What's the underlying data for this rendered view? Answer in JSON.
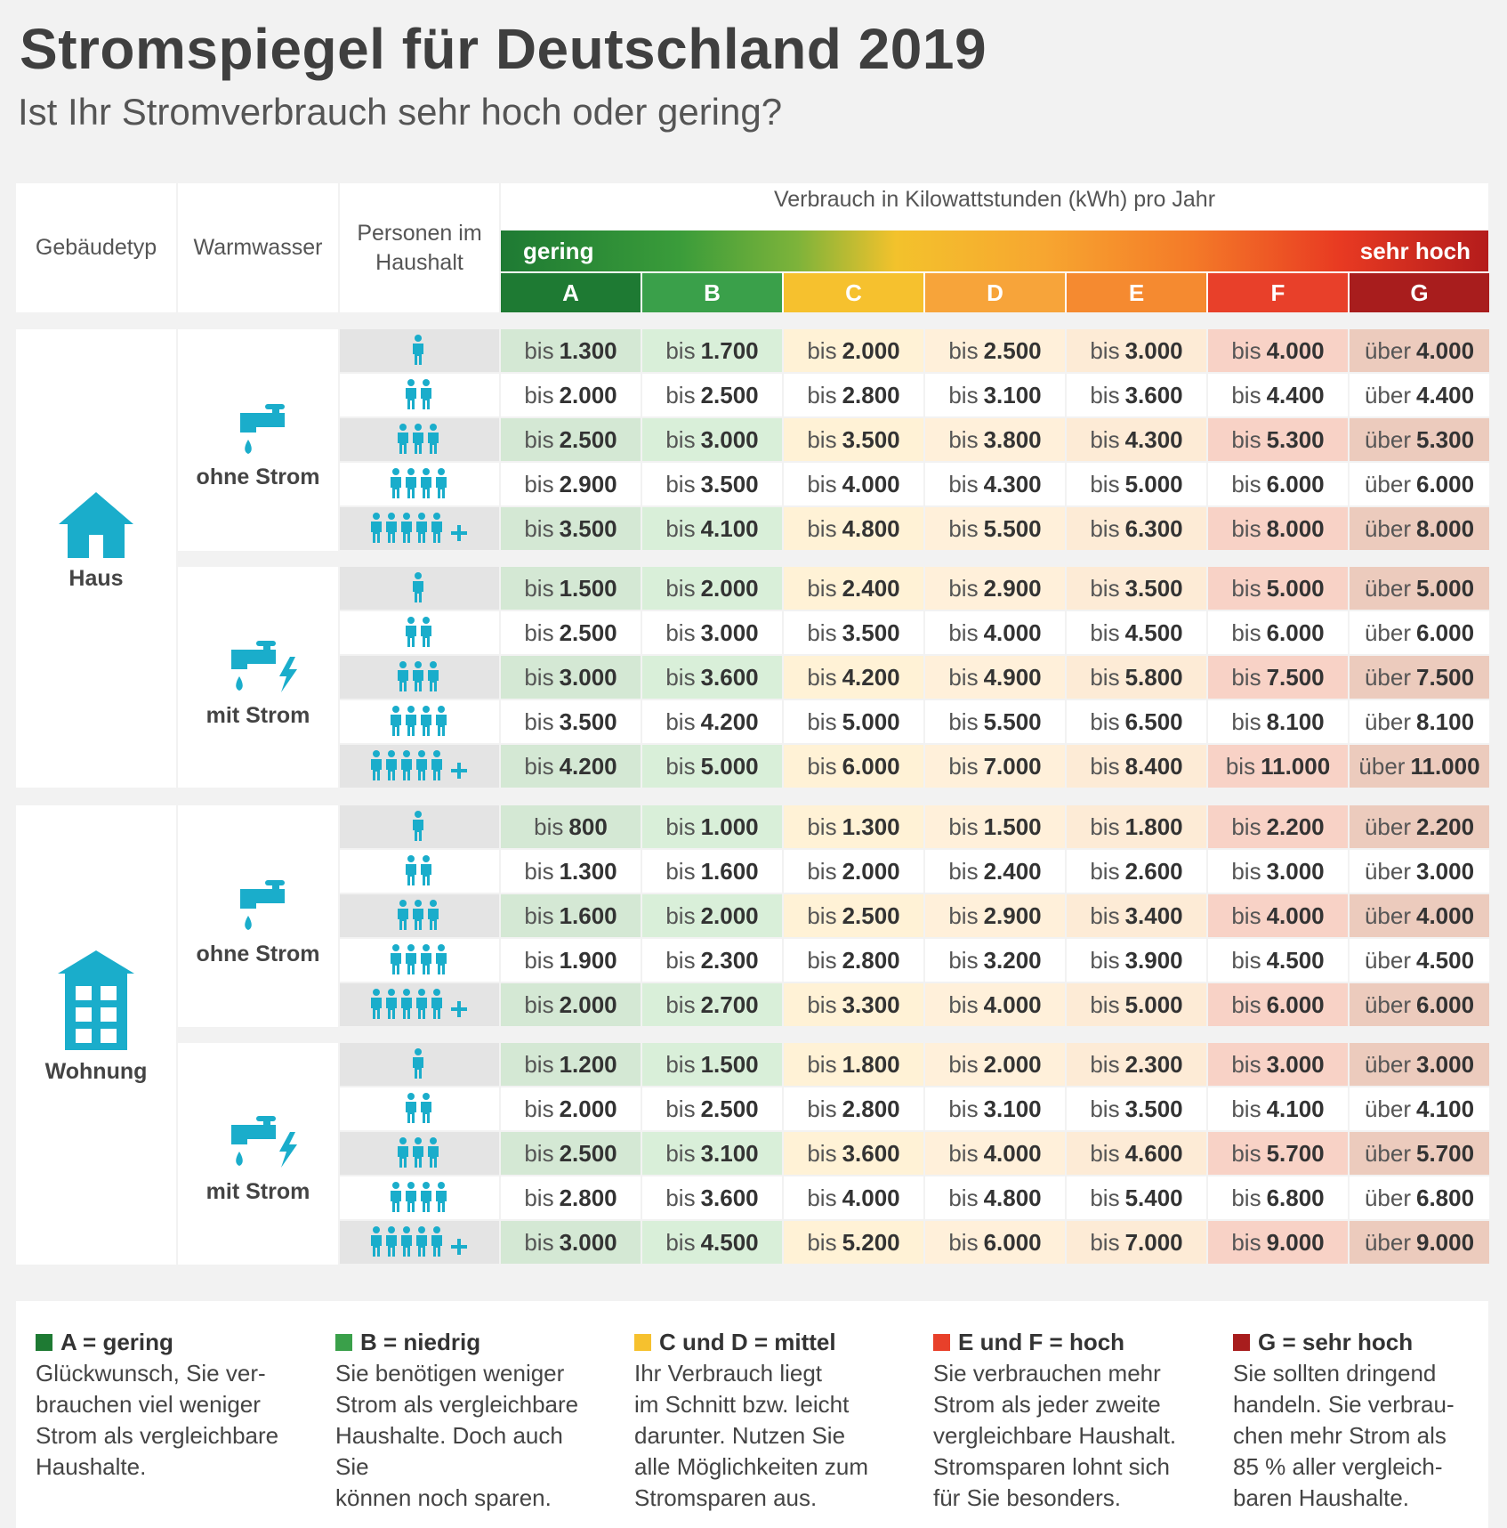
{
  "title": "Stromspiegel für Deutschland 2019",
  "subtitle": "Ist Ihr Stromverbrauch sehr hoch oder gering?",
  "headers": {
    "gebaeudetyp": "Gebäudetyp",
    "warmwasser": "Warmwasser",
    "personen": "Personen im Haushalt",
    "verbrauch": "Verbrauch in Kilowattstunden (kWh) pro Jahr",
    "gering": "gering",
    "sehr_hoch": "sehr hoch"
  },
  "classes": [
    "A",
    "B",
    "C",
    "D",
    "E",
    "F",
    "G"
  ],
  "colors": {
    "classes": [
      "#1e7a33",
      "#3aa04a",
      "#f6c12e",
      "#f7a43a",
      "#f58a30",
      "#e8402a",
      "#a81d1d"
    ],
    "cells": [
      "#d4e8d4",
      "#d9efd9",
      "#fff2d6",
      "#fff0da",
      "#fdebd6",
      "#f8d2c6",
      "#eccbbd"
    ],
    "accent": "#1aadcb"
  },
  "building_labels": {
    "haus": "Haus",
    "wohnung": "Wohnung"
  },
  "water_labels": {
    "ohne": "ohne Strom",
    "mit": "mit Strom"
  },
  "prefix": {
    "bis": "bis",
    "ueber": "über"
  },
  "persons_icons": [
    "person-1-icon",
    "person-2-icon",
    "person-3-icon",
    "person-4-icon",
    "person-5-plus-icon"
  ],
  "table": {
    "haus_ohne": [
      [
        "1.300",
        "1.700",
        "2.000",
        "2.500",
        "3.000",
        "4.000",
        "4.000"
      ],
      [
        "2.000",
        "2.500",
        "2.800",
        "3.100",
        "3.600",
        "4.400",
        "4.400"
      ],
      [
        "2.500",
        "3.000",
        "3.500",
        "3.800",
        "4.300",
        "5.300",
        "5.300"
      ],
      [
        "2.900",
        "3.500",
        "4.000",
        "4.300",
        "5.000",
        "6.000",
        "6.000"
      ],
      [
        "3.500",
        "4.100",
        "4.800",
        "5.500",
        "6.300",
        "8.000",
        "8.000"
      ]
    ],
    "haus_mit": [
      [
        "1.500",
        "2.000",
        "2.400",
        "2.900",
        "3.500",
        "5.000",
        "5.000"
      ],
      [
        "2.500",
        "3.000",
        "3.500",
        "4.000",
        "4.500",
        "6.000",
        "6.000"
      ],
      [
        "3.000",
        "3.600",
        "4.200",
        "4.900",
        "5.800",
        "7.500",
        "7.500"
      ],
      [
        "3.500",
        "4.200",
        "5.000",
        "5.500",
        "6.500",
        "8.100",
        "8.100"
      ],
      [
        "4.200",
        "5.000",
        "6.000",
        "7.000",
        "8.400",
        "11.000",
        "11.000"
      ]
    ],
    "wohnung_ohne": [
      [
        "800",
        "1.000",
        "1.300",
        "1.500",
        "1.800",
        "2.200",
        "2.200"
      ],
      [
        "1.300",
        "1.600",
        "2.000",
        "2.400",
        "2.600",
        "3.000",
        "3.000"
      ],
      [
        "1.600",
        "2.000",
        "2.500",
        "2.900",
        "3.400",
        "4.000",
        "4.000"
      ],
      [
        "1.900",
        "2.300",
        "2.800",
        "3.200",
        "3.900",
        "4.500",
        "4.500"
      ],
      [
        "2.000",
        "2.700",
        "3.300",
        "4.000",
        "5.000",
        "6.000",
        "6.000"
      ]
    ],
    "wohnung_mit": [
      [
        "1.200",
        "1.500",
        "1.800",
        "2.000",
        "2.300",
        "3.000",
        "3.000"
      ],
      [
        "2.000",
        "2.500",
        "2.800",
        "3.100",
        "3.500",
        "4.100",
        "4.100"
      ],
      [
        "2.500",
        "3.100",
        "3.600",
        "4.000",
        "4.600",
        "5.700",
        "5.700"
      ],
      [
        "2.800",
        "3.600",
        "4.000",
        "4.800",
        "5.400",
        "6.800",
        "6.800"
      ],
      [
        "3.000",
        "4.500",
        "5.200",
        "6.000",
        "7.000",
        "9.000",
        "9.000"
      ]
    ]
  },
  "legend": [
    {
      "title": "A = gering",
      "lines": [
        "Glückwunsch, Sie ver-",
        "brauchen viel weniger",
        "Strom als vergleichbare",
        "Haushalte."
      ],
      "color": "#1e7a33"
    },
    {
      "title": "B = niedrig",
      "lines": [
        "Sie benötigen weniger",
        "Strom als vergleichbare",
        "Haushalte. Doch auch Sie",
        "können noch sparen."
      ],
      "color": "#3aa04a"
    },
    {
      "title": "C und D = mittel",
      "lines": [
        "Ihr Verbrauch liegt",
        "im Schnitt bzw. leicht",
        "darunter. Nutzen Sie",
        "alle Möglichkeiten zum",
        "Stromsparen aus."
      ],
      "color": "#f6c12e"
    },
    {
      "title": "E und F = hoch",
      "lines": [
        "Sie verbrauchen mehr",
        "Strom als jeder zweite",
        "vergleichbare Haushalt.",
        "Stromsparen lohnt sich",
        "für Sie besonders."
      ],
      "color": "#e8402a"
    },
    {
      "title": "G = sehr hoch",
      "lines": [
        "Sie sollten dringend",
        "handeln. Sie verbrau-",
        "chen mehr Strom als",
        "85 % aller vergleich-",
        "baren Haushalte."
      ],
      "color": "#a81d1d"
    }
  ]
}
